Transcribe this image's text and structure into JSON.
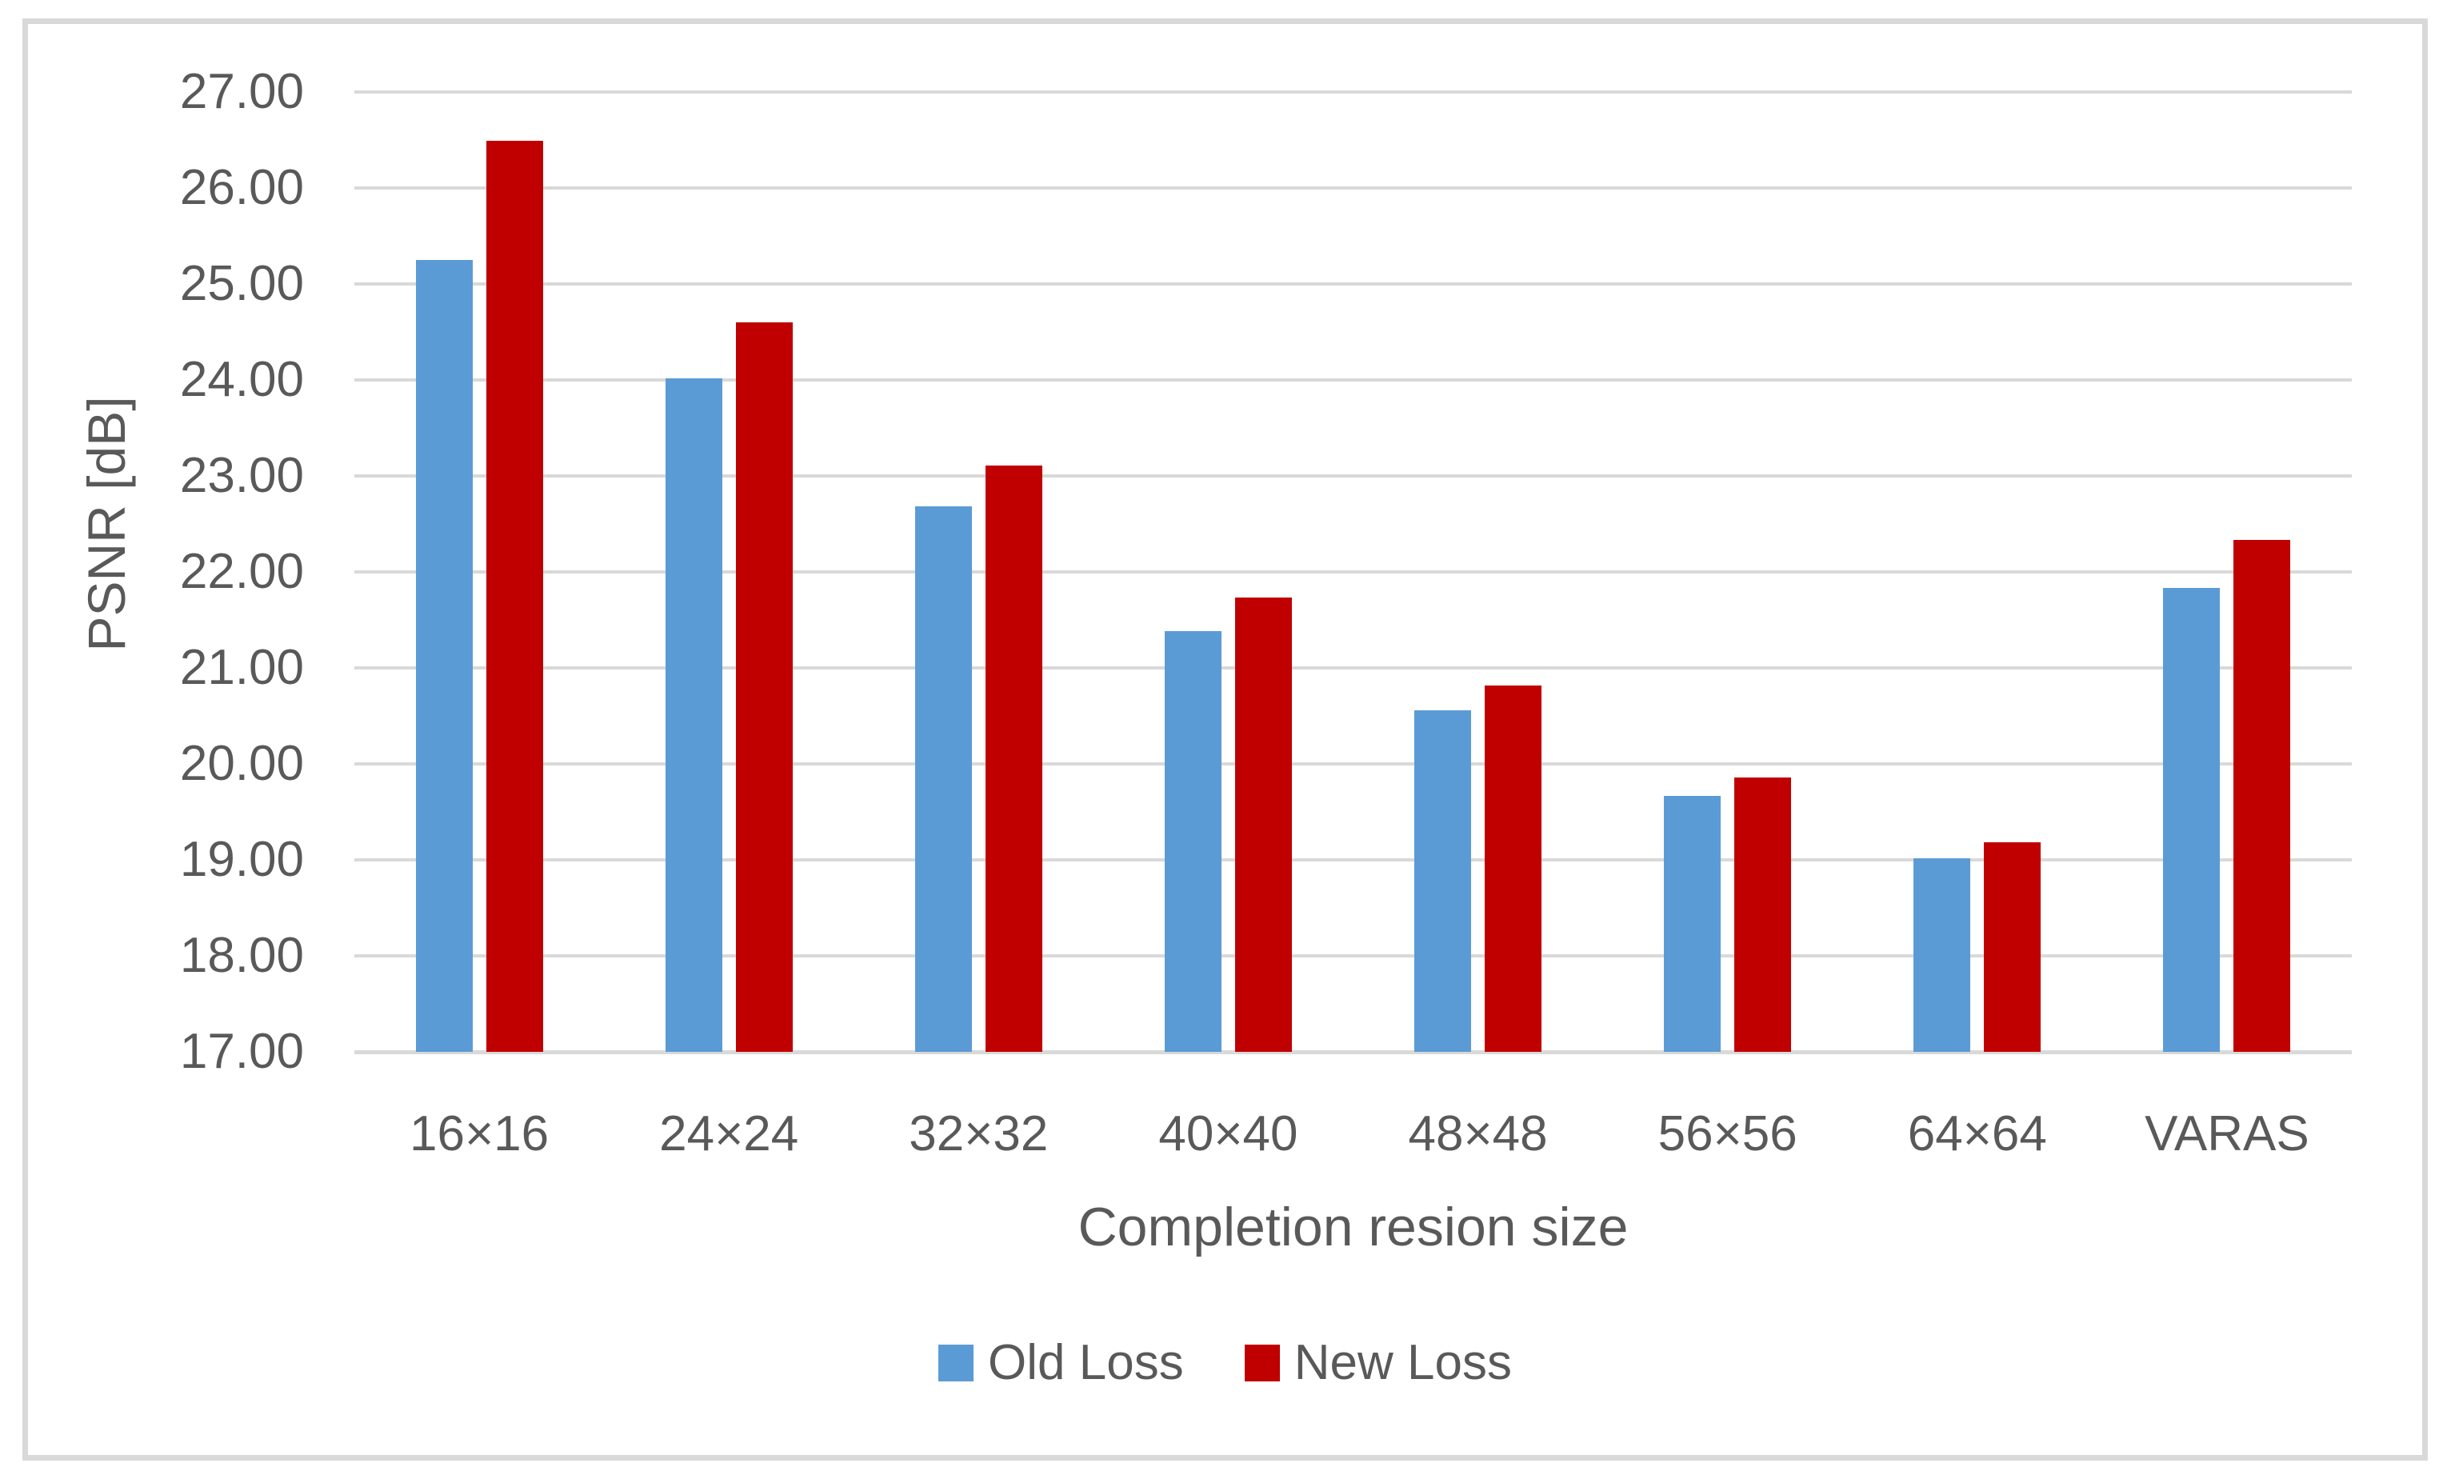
{
  "chart_data": {
    "type": "bar",
    "title": "",
    "xlabel": "Completion resion size",
    "ylabel": "PSNR [dB]",
    "ylim": [
      17,
      27
    ],
    "ytick_step": 1,
    "ytick_decimals": 2,
    "grid": true,
    "legend_position": "bottom",
    "categories": [
      "16×16",
      "24×24",
      "32×32",
      "40×40",
      "48×48",
      "56×56",
      "64×64",
      "VARAS"
    ],
    "series": [
      {
        "name": "Old Loss",
        "color": "#5B9BD5",
        "values": [
          25.25,
          24.02,
          22.68,
          21.38,
          20.56,
          19.67,
          19.02,
          21.83
        ]
      },
      {
        "name": "New Loss",
        "color": "#C00000",
        "values": [
          26.49,
          24.6,
          23.11,
          21.73,
          20.82,
          19.86,
          19.18,
          22.33
        ]
      }
    ]
  },
  "colors": {
    "gridline": "#D9D9D9",
    "axis_line": "#D9D9D9",
    "frame_border": "#D9D9D9",
    "text": "#595959",
    "background": "#FFFFFF"
  }
}
